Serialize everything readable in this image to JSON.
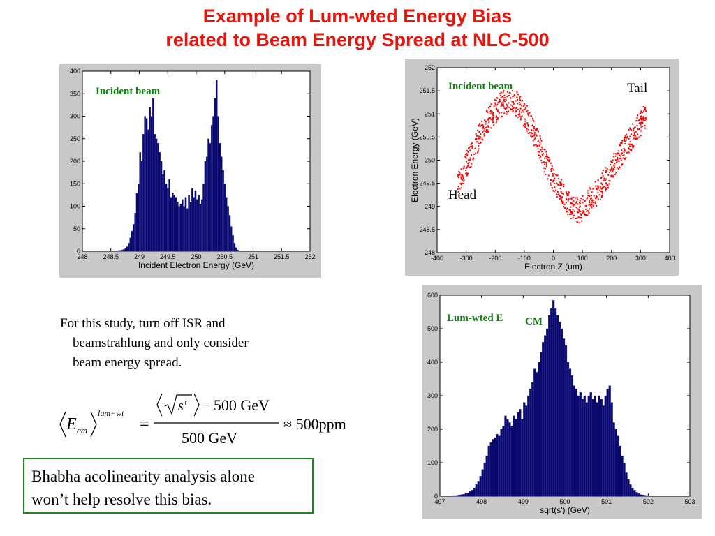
{
  "title": {
    "line1": "Example of Lum-wted Energy Bias",
    "line2": "related to Beam Energy Spread at NLC-500"
  },
  "body_text": {
    "line1": "For this study, turn off ISR and",
    "line2": "beamstrahlung and only consider",
    "line3": "beam energy spread."
  },
  "formula": {
    "lhs_symbol": "E",
    "lhs_sub": "cm",
    "lhs_sup": "lum−wt",
    "numerator_tail": "− 500 GeV",
    "denominator": "500 GeV",
    "approx": "≈ 500ppm",
    "eq": "=",
    "s_prime": "s'"
  },
  "box_text": {
    "line1": "Bhabha acolinearity analysis alone",
    "line2": "won’t help resolve this bias."
  },
  "colors": {
    "title": "#e8140c",
    "bar": "#0a0a6e",
    "scatter": "#ff0000",
    "label_green": "#108010",
    "box_border": "#1a8a1a"
  },
  "chart_data": [
    {
      "type": "bar",
      "label": "Incident beam",
      "xlabel": "Incident Electron Energy (GeV)",
      "ylabel": "",
      "xlim": [
        248,
        252
      ],
      "ylim": [
        0,
        400
      ],
      "xticks": [
        "248",
        "248.5",
        "249",
        "249.5",
        "250",
        "250.5",
        "251",
        "251.5",
        "252"
      ],
      "yticks": [
        "0",
        "50",
        "100",
        "150",
        "200",
        "250",
        "300",
        "350",
        "400"
      ],
      "bin_start": 248.6,
      "bin_width": 0.0286,
      "values": [
        1,
        2,
        2,
        3,
        4,
        6,
        10,
        18,
        30,
        45,
        60,
        85,
        130,
        150,
        220,
        200,
        260,
        300,
        295,
        270,
        320,
        300,
        340,
        260,
        250,
        240,
        220,
        200,
        170,
        180,
        150,
        140,
        160,
        120,
        130,
        125,
        120,
        110,
        100,
        105,
        115,
        100,
        120,
        95,
        125,
        110,
        140,
        120,
        135,
        115,
        125,
        105,
        115,
        150,
        200,
        210,
        250,
        240,
        280,
        300,
        340,
        380,
        300,
        240,
        210,
        180,
        150,
        120,
        100,
        80,
        55,
        35,
        18,
        8,
        3,
        1
      ]
    },
    {
      "type": "scatter",
      "label_top": "Incident beam",
      "label_tail": "Tail",
      "label_head": "Head",
      "xlabel": "Electron Z (um)",
      "ylabel": "Electron Energy (GeV)",
      "xlim": [
        -400,
        400
      ],
      "ylim": [
        248,
        252
      ],
      "xticks": [
        "-400",
        "-300",
        "-200",
        "-100",
        "0",
        "100",
        "200",
        "300",
        "400"
      ],
      "yticks": [
        "248",
        "248.5",
        "249",
        "249.5",
        "250",
        "250.5",
        "251",
        "251.5",
        "252"
      ],
      "series": [
        {
          "x": [
            -330,
            -300,
            -270,
            -240,
            -210,
            -180,
            -150,
            -120,
            -90,
            -60,
            -30,
            0,
            30,
            60,
            90,
            120,
            150,
            180,
            210,
            240,
            270,
            300,
            320
          ],
          "y": [
            249.4,
            249.9,
            250.3,
            250.7,
            251.0,
            251.2,
            251.3,
            251.2,
            250.9,
            250.5,
            250.0,
            249.6,
            249.3,
            249.0,
            248.9,
            249.1,
            249.3,
            249.6,
            249.9,
            250.2,
            250.5,
            250.8,
            251.0
          ]
        }
      ]
    },
    {
      "type": "bar",
      "label": "Lum-wted E",
      "label_sub": "CM",
      "xlabel": "sqrt(s') (GeV)",
      "ylabel": "",
      "xlim": [
        497,
        503
      ],
      "ylim": [
        0,
        600
      ],
      "xticks": [
        "497",
        "498",
        "499",
        "500",
        "501",
        "502",
        "503"
      ],
      "yticks": [
        "0",
        "100",
        "200",
        "300",
        "400",
        "500",
        "600"
      ],
      "bin_start": 497.3,
      "bin_width": 0.05,
      "values": [
        2,
        2,
        3,
        4,
        5,
        6,
        8,
        10,
        14,
        18,
        25,
        35,
        45,
        60,
        80,
        100,
        120,
        150,
        160,
        170,
        175,
        185,
        180,
        200,
        210,
        240,
        230,
        220,
        210,
        240,
        230,
        250,
        260,
        230,
        280,
        270,
        300,
        320,
        340,
        380,
        370,
        400,
        430,
        460,
        480,
        500,
        540,
        560,
        585,
        560,
        540,
        520,
        500,
        470,
        450,
        400,
        380,
        360,
        330,
        320,
        300,
        310,
        290,
        300,
        280,
        300,
        310,
        290,
        300,
        280,
        300,
        290,
        270,
        300,
        320,
        330,
        280,
        220,
        200,
        180,
        150,
        120,
        100,
        70,
        50,
        35,
        25,
        18,
        12,
        8,
        5,
        4,
        3,
        2
      ]
    }
  ]
}
